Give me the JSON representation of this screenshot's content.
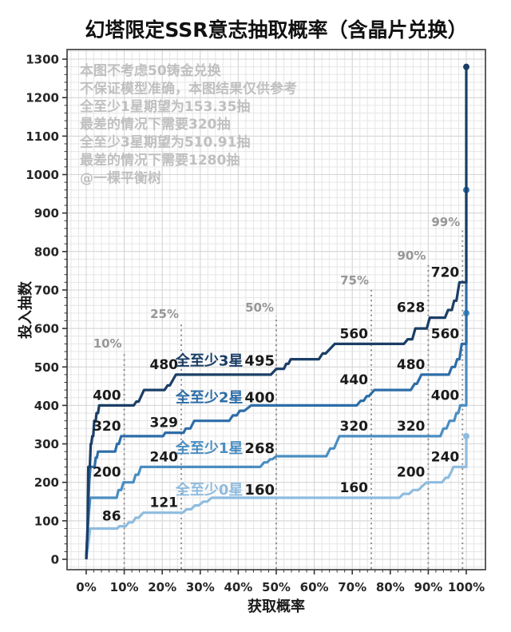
{
  "chart_data": {
    "type": "line",
    "subtype": "step",
    "title": "幻塔限定SSR意志抽取概率（含晶片兑换）",
    "xlabel": "获取概率",
    "ylabel": "投入抽数",
    "x_ticks": [
      "0%",
      "10%",
      "20%",
      "30%",
      "40%",
      "50%",
      "60%",
      "70%",
      "80%",
      "90%",
      "100%"
    ],
    "x_tick_values": [
      0,
      10,
      20,
      30,
      40,
      50,
      60,
      70,
      80,
      90,
      100
    ],
    "y_ticks": [
      "0",
      "100",
      "200",
      "300",
      "400",
      "500",
      "600",
      "700",
      "800",
      "900",
      "1000",
      "1100",
      "1200",
      "1300"
    ],
    "y_tick_values": [
      0,
      100,
      200,
      300,
      400,
      500,
      600,
      700,
      800,
      900,
      1000,
      1100,
      1200,
      1300
    ],
    "ylim": [
      0,
      1300
    ],
    "grid": "minor 2% x 20 draws, major 10% x 100 draws",
    "legend_position": "inline at 50%",
    "annotations": [
      "本图不考虑50铸金兑换",
      "不保证模型准确，本图结果仅供参考",
      "全至少1星期望为153.35抽",
      "最差的情况下需要320抽",
      "全至少3星期望为510.91抽",
      "最差的情况下需要1280抽",
      "@一棵平衡树"
    ],
    "colors": {
      "annotation": "#c0c0c0",
      "quantile_line": "#8f8f8f",
      "grid_minor": "#e6e6e6",
      "grid_major": "#d5d5d5",
      "spine": "#4d4d4d",
      "label_black": "#1a1a1a"
    },
    "quantile_lines": [
      {
        "percent": 10,
        "label": "10%",
        "top_value": 540
      },
      {
        "percent": 25,
        "label": "25%",
        "top_value": 617
      },
      {
        "percent": 50,
        "label": "50%",
        "top_value": 633
      },
      {
        "percent": 75,
        "label": "75%",
        "top_value": 704
      },
      {
        "percent": 90,
        "label": "90%",
        "top_value": 768
      },
      {
        "percent": 99,
        "label": "99%",
        "top_value": 856
      }
    ],
    "series": [
      {
        "id": "star0",
        "name": "全至少0星",
        "color": "#8fbcdf",
        "inline_label": {
          "percent": 50,
          "value": 160
        },
        "point_labels": [
          {
            "percent": 10,
            "value": 86,
            "text": "86"
          },
          {
            "percent": 25,
            "value": 121,
            "text": "121"
          },
          {
            "percent": 75,
            "value": 160,
            "text": "160"
          },
          {
            "percent": 90,
            "value": 200,
            "text": "200"
          },
          {
            "percent": 99,
            "value": 240,
            "text": "240"
          }
        ],
        "worst_case": 320,
        "points": [
          [
            0,
            0
          ],
          [
            0.55,
            40
          ],
          [
            1.05,
            80
          ],
          [
            8.2,
            80
          ],
          [
            8.7,
            86
          ],
          [
            10.4,
            86
          ],
          [
            11.2,
            96
          ],
          [
            12.2,
            96
          ],
          [
            13.0,
            108
          ],
          [
            13.8,
            108
          ],
          [
            15.0,
            121
          ],
          [
            25.4,
            121
          ],
          [
            26.4,
            130
          ],
          [
            27.6,
            130
          ],
          [
            28.6,
            140
          ],
          [
            29.6,
            140
          ],
          [
            30.8,
            150
          ],
          [
            31.8,
            150
          ],
          [
            33.0,
            160
          ],
          [
            82.4,
            160
          ],
          [
            83.4,
            170
          ],
          [
            85.0,
            170
          ],
          [
            86.0,
            180
          ],
          [
            87.4,
            180
          ],
          [
            88.4,
            190
          ],
          [
            89.6,
            200
          ],
          [
            93.6,
            200
          ],
          [
            94.6,
            212
          ],
          [
            95.2,
            212
          ],
          [
            96.0,
            226
          ],
          [
            96.6,
            240
          ],
          [
            100,
            240
          ],
          [
            100,
            320
          ]
        ]
      },
      {
        "id": "star1",
        "name": "全至少1星",
        "color": "#4a8ec2",
        "inline_label": {
          "percent": 50,
          "value": 268
        },
        "point_labels": [
          {
            "percent": 10,
            "value": 200,
            "text": "200"
          },
          {
            "percent": 25,
            "value": 240,
            "text": "240"
          },
          {
            "percent": 75,
            "value": 320,
            "text": "320"
          },
          {
            "percent": 90,
            "value": 320,
            "text": "320"
          },
          {
            "percent": 99,
            "value": 400,
            "text": "400"
          }
        ],
        "worst_case": 640,
        "points": [
          [
            0,
            0
          ],
          [
            0.4,
            80
          ],
          [
            0.7,
            120
          ],
          [
            1.05,
            160
          ],
          [
            8.0,
            160
          ],
          [
            8.5,
            180
          ],
          [
            9.2,
            180
          ],
          [
            9.8,
            200
          ],
          [
            12.4,
            200
          ],
          [
            13.0,
            220
          ],
          [
            13.7,
            220
          ],
          [
            14.4,
            240
          ],
          [
            45.8,
            240
          ],
          [
            46.8,
            252
          ],
          [
            47.6,
            252
          ],
          [
            48.4,
            260
          ],
          [
            49.0,
            260
          ],
          [
            50.0,
            268
          ],
          [
            63.2,
            268
          ],
          [
            64.2,
            288
          ],
          [
            65.2,
            288
          ],
          [
            66.6,
            320
          ],
          [
            93.2,
            320
          ],
          [
            94.0,
            340
          ],
          [
            94.8,
            340
          ],
          [
            95.6,
            360
          ],
          [
            96.8,
            360
          ],
          [
            97.4,
            380
          ],
          [
            97.9,
            380
          ],
          [
            98.4,
            400
          ],
          [
            100,
            400
          ],
          [
            100,
            640
          ]
        ]
      },
      {
        "id": "star2",
        "name": "全至少2星",
        "color": "#2d6da8",
        "inline_label": {
          "percent": 50,
          "value": 400
        },
        "point_labels": [
          {
            "percent": 10,
            "value": 320,
            "text": "320"
          },
          {
            "percent": 25,
            "value": 329,
            "text": "329"
          },
          {
            "percent": 75,
            "value": 440,
            "text": "440"
          },
          {
            "percent": 90,
            "value": 480,
            "text": "480"
          },
          {
            "percent": 99,
            "value": 560,
            "text": "560"
          }
        ],
        "worst_case": 960,
        "points": [
          [
            0,
            0
          ],
          [
            0.35,
            80
          ],
          [
            0.6,
            160
          ],
          [
            0.8,
            200
          ],
          [
            1.1,
            240
          ],
          [
            2.2,
            240
          ],
          [
            2.5,
            264
          ],
          [
            2.8,
            264
          ],
          [
            3.1,
            280
          ],
          [
            7.6,
            280
          ],
          [
            8.1,
            300
          ],
          [
            8.6,
            300
          ],
          [
            9.2,
            320
          ],
          [
            20.2,
            320
          ],
          [
            20.8,
            329
          ],
          [
            25.6,
            329
          ],
          [
            26.2,
            340
          ],
          [
            27.4,
            340
          ],
          [
            28.4,
            360
          ],
          [
            37.6,
            360
          ],
          [
            38.6,
            374
          ],
          [
            39.6,
            374
          ],
          [
            40.4,
            386
          ],
          [
            41.6,
            386
          ],
          [
            43.4,
            400
          ],
          [
            71.2,
            400
          ],
          [
            72.2,
            412
          ],
          [
            73.0,
            412
          ],
          [
            73.8,
            424
          ],
          [
            74.4,
            424
          ],
          [
            75.8,
            440
          ],
          [
            85.4,
            440
          ],
          [
            86.4,
            456
          ],
          [
            87.0,
            456
          ],
          [
            88.2,
            480
          ],
          [
            95.4,
            480
          ],
          [
            96.2,
            500
          ],
          [
            97.0,
            500
          ],
          [
            97.6,
            520
          ],
          [
            98.2,
            520
          ],
          [
            98.8,
            560
          ],
          [
            100,
            560
          ],
          [
            100,
            960
          ]
        ]
      },
      {
        "id": "star3",
        "name": "全至少3星",
        "color": "#1a3e66",
        "inline_label": {
          "percent": 50,
          "value": 495
        },
        "point_labels": [
          {
            "percent": 10,
            "value": 400,
            "text": "400"
          },
          {
            "percent": 25,
            "value": 480,
            "text": "480"
          },
          {
            "percent": 75,
            "value": 560,
            "text": "560"
          },
          {
            "percent": 90,
            "value": 628,
            "text": "628"
          },
          {
            "percent": 99,
            "value": 720,
            "text": "720"
          }
        ],
        "worst_case": 1280,
        "points": [
          [
            0,
            0
          ],
          [
            0.35,
            80
          ],
          [
            0.55,
            240
          ],
          [
            0.95,
            240
          ],
          [
            1.2,
            300
          ],
          [
            1.35,
            300
          ],
          [
            1.6,
            320
          ],
          [
            1.85,
            320
          ],
          [
            2.1,
            360
          ],
          [
            2.5,
            360
          ],
          [
            2.7,
            380
          ],
          [
            3.1,
            380
          ],
          [
            3.4,
            400
          ],
          [
            12.5,
            400
          ],
          [
            13.2,
            410
          ],
          [
            13.8,
            410
          ],
          [
            15.2,
            440
          ],
          [
            20.6,
            440
          ],
          [
            21.4,
            452
          ],
          [
            22.0,
            452
          ],
          [
            23.6,
            480
          ],
          [
            48.6,
            480
          ],
          [
            50.0,
            495
          ],
          [
            52.0,
            495
          ],
          [
            52.6,
            508
          ],
          [
            53.2,
            508
          ],
          [
            53.8,
            520
          ],
          [
            61.2,
            520
          ],
          [
            62.2,
            535
          ],
          [
            63.0,
            535
          ],
          [
            65.4,
            560
          ],
          [
            83.6,
            560
          ],
          [
            84.6,
            572
          ],
          [
            85.8,
            572
          ],
          [
            86.6,
            600
          ],
          [
            89.6,
            600
          ],
          [
            90.4,
            628
          ],
          [
            94.4,
            628
          ],
          [
            95.2,
            648
          ],
          [
            96.2,
            648
          ],
          [
            96.8,
            672
          ],
          [
            97.4,
            672
          ],
          [
            98.2,
            720
          ],
          [
            100,
            720
          ],
          [
            100,
            1280
          ]
        ]
      }
    ]
  }
}
